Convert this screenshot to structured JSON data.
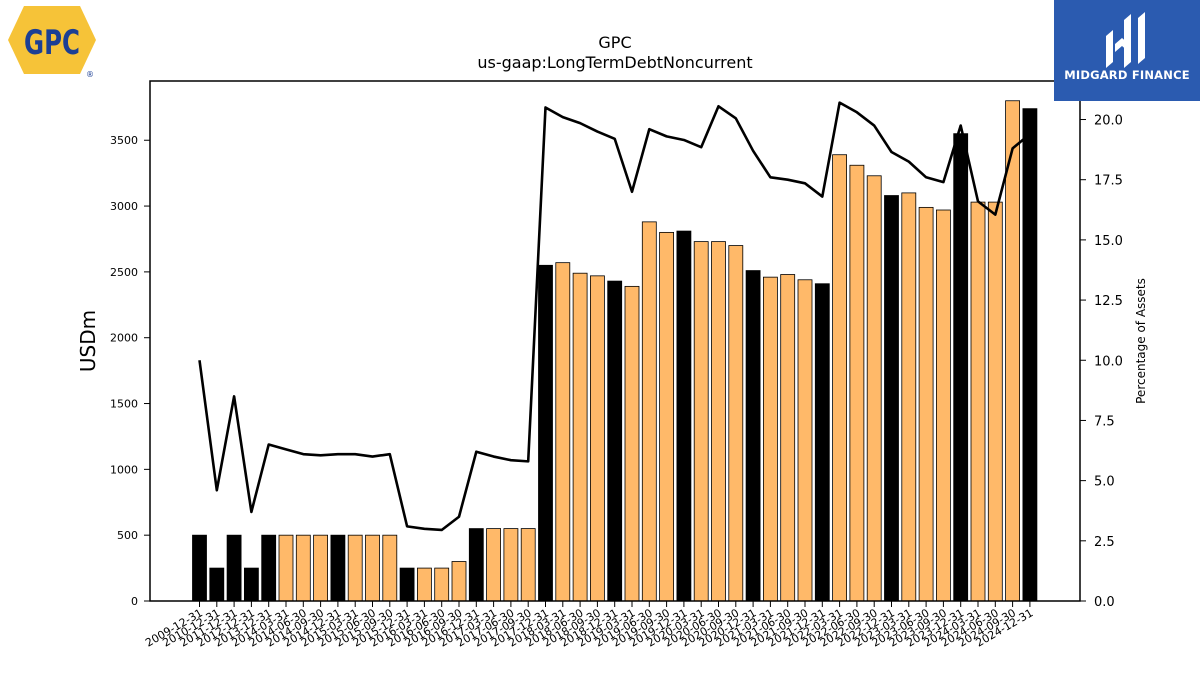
{
  "logos": {
    "left": {
      "text": "GPC",
      "registered": "®"
    },
    "right": {
      "text": "MIDGARD FINANCE"
    }
  },
  "chart_data": {
    "type": "bar",
    "title": "GPC",
    "subtitle": "us-gaap:LongTermDebtNoncurrent",
    "ylabel": "USDm",
    "y2label": "Percentage of Assets",
    "ylim": [
      0,
      3950
    ],
    "y2lim": [
      0,
      21.6
    ],
    "yticks": [
      0,
      500,
      1000,
      1500,
      2000,
      2500,
      3000,
      3500
    ],
    "y2ticks": [
      "0.0",
      "2.5",
      "5.0",
      "7.5",
      "10.0",
      "12.5",
      "15.0",
      "17.5",
      "20.0"
    ],
    "categories": [
      "2009-12-31",
      "2010-12-31",
      "2011-12-31",
      "2012-12-31",
      "2013-12-31",
      "2014-03-31",
      "2014-06-30",
      "2014-09-30",
      "2014-12-31",
      "2015-03-31",
      "2015-06-30",
      "2015-09-30",
      "2015-12-31",
      "2016-03-31",
      "2016-06-30",
      "2016-09-30",
      "2016-12-31",
      "2017-03-31",
      "2017-06-30",
      "2017-09-30",
      "2017-12-31",
      "2018-03-31",
      "2018-06-30",
      "2018-09-30",
      "2018-12-31",
      "2019-03-31",
      "2019-06-30",
      "2019-09-30",
      "2019-12-31",
      "2020-03-31",
      "2020-06-30",
      "2020-09-30",
      "2020-12-31",
      "2021-03-31",
      "2021-06-30",
      "2021-09-30",
      "2021-12-31",
      "2022-03-31",
      "2022-06-30",
      "2022-09-30",
      "2022-12-31",
      "2023-03-31",
      "2023-06-30",
      "2023-09-30",
      "2023-12-31",
      "2024-03-31",
      "2024-06-30",
      "2024-09-30",
      "2024-12-31"
    ],
    "bar_kind": [
      "annual",
      "annual",
      "annual",
      "annual",
      "annual",
      "quarter",
      "quarter",
      "quarter",
      "annual",
      "quarter",
      "quarter",
      "quarter",
      "annual",
      "quarter",
      "quarter",
      "quarter",
      "annual",
      "quarter",
      "quarter",
      "quarter",
      "annual",
      "quarter",
      "quarter",
      "quarter",
      "annual",
      "quarter",
      "quarter",
      "quarter",
      "annual",
      "quarter",
      "quarter",
      "quarter",
      "annual",
      "quarter",
      "quarter",
      "quarter",
      "annual",
      "quarter",
      "quarter",
      "quarter",
      "annual",
      "quarter",
      "quarter",
      "quarter",
      "annual",
      "quarter",
      "quarter",
      "quarter",
      "annual"
    ],
    "colors": {
      "annual": "#000000",
      "quarter": "#ffb969",
      "line": "#000000"
    },
    "series": [
      {
        "values": [
          500,
          250,
          500,
          250,
          500,
          500,
          500,
          500,
          500,
          500,
          500,
          500,
          250,
          250,
          250,
          300,
          550,
          550,
          550,
          550,
          2550,
          2570,
          2490,
          2470,
          2430,
          2390,
          2880,
          2800,
          2810,
          2730,
          2730,
          2700,
          2510,
          2460,
          2480,
          2440,
          2410,
          3390,
          3310,
          3230,
          3080,
          3100,
          2990,
          2970,
          3550,
          3030,
          3030,
          3800,
          3740
        ]
      },
      {
        "values": [
          10.0,
          4.6,
          8.5,
          3.7,
          6.5,
          6.3,
          6.1,
          6.05,
          6.1,
          6.1,
          6.0,
          6.1,
          3.1,
          3.0,
          2.95,
          3.5,
          6.2,
          6.0,
          5.85,
          5.8,
          20.5,
          20.1,
          19.85,
          19.5,
          19.2,
          17.0,
          19.6,
          19.3,
          19.15,
          18.85,
          20.55,
          20.05,
          18.7,
          17.6,
          17.5,
          17.35,
          16.8,
          20.7,
          20.3,
          19.75,
          18.65,
          18.25,
          17.6,
          17.4,
          19.75,
          16.6,
          16.05,
          18.8,
          19.4
        ]
      }
    ]
  }
}
